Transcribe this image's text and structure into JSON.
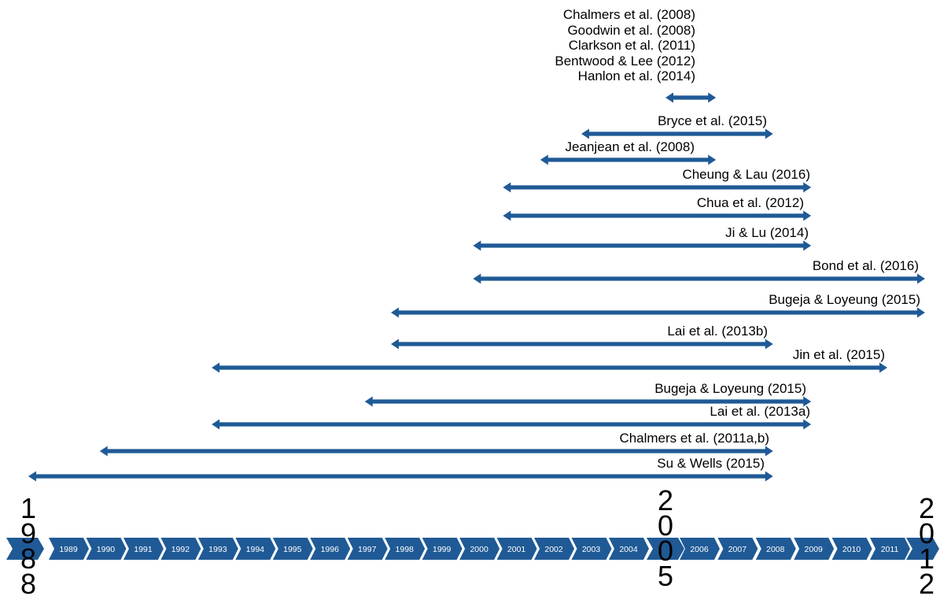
{
  "diagram": {
    "colors": {
      "arrow": "#1f5a96",
      "timeline": "#1f5a96",
      "year_text": "#ffffff"
    },
    "stacked_labels": [
      "Chalmers et al. (2008)",
      "Goodwin et al. (2008)",
      "Clarkson et al. (2011)",
      "Bentwood & Lee (2012)",
      "Hanlon et al. (2014)"
    ],
    "ranges": [
      {
        "label": "",
        "start": 2005,
        "end": 2006.5
      },
      {
        "label": "Bryce et al. (2015)",
        "start": 2002.8,
        "end": 2008
      },
      {
        "label": "Jeanjean et al. (2008)",
        "start": 2001.7,
        "end": 2006.5
      },
      {
        "label": "Cheung & Lau (2016)",
        "start": 2000.7,
        "end": 2009
      },
      {
        "label": "Chua et al. (2012)",
        "start": 2000.7,
        "end": 2009
      },
      {
        "label": "Ji & Lu (2014)",
        "start": 1999.9,
        "end": 2009
      },
      {
        "label": "Bond et al. (2016)",
        "start": 1999.9,
        "end": 2012
      },
      {
        "label": "Bugeja & Loyeung (2015)",
        "start": 1997.7,
        "end": 2012
      },
      {
        "label": "Lai et al. (2013b)",
        "start": 1997.7,
        "end": 2008
      },
      {
        "label": "Jin et al. (2015)",
        "start": 1992.9,
        "end": 2011
      },
      {
        "label": "Bugeja & Loyeung (2015)",
        "start": 1997,
        "end": 2009
      },
      {
        "label": "Lai et al. (2013a)",
        "start": 1992.9,
        "end": 2009
      },
      {
        "label": "Chalmers et al. (2011a,b)",
        "start": 1989.9,
        "end": 2008
      },
      {
        "label": "Su & Wells (2015)",
        "start": 1988,
        "end": 2008
      }
    ],
    "timeline_years": [
      "1989",
      "1990",
      "1991",
      "1992",
      "1993",
      "1994",
      "1995",
      "1996",
      "1997",
      "1998",
      "1999",
      "2000",
      "2001",
      "2002",
      "2003",
      "2004",
      "2006",
      "2007",
      "2008",
      "2009",
      "2010",
      "2011"
    ],
    "big_years": [
      {
        "value": "1988",
        "digits": [
          "1",
          "9",
          "8",
          "8"
        ]
      },
      {
        "value": "2005",
        "digits": [
          "2",
          "0",
          "0",
          "5"
        ]
      },
      {
        "value": "2012",
        "digits": [
          "2",
          "0",
          "1",
          "2"
        ]
      }
    ]
  }
}
